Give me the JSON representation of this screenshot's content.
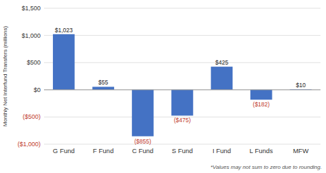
{
  "chart_data": {
    "type": "bar",
    "ylabel": "Monthly Net Interfund Transfers (millions)",
    "categories": [
      "G Fund",
      "F Fund",
      "C Fund",
      "S Fund",
      "I Fund",
      "L Funds",
      "MFW"
    ],
    "values": [
      1023,
      55,
      -855,
      -475,
      425,
      -182,
      10
    ],
    "value_labels": [
      "$1,023",
      "$55",
      "($855)",
      "($475)",
      "$425",
      "($182)",
      "$10"
    ],
    "data_labels": true,
    "color": "#4472C4",
    "ylim": [
      -1000,
      1500
    ],
    "yticks": [
      {
        "value": -1000,
        "label": "($1,000)"
      },
      {
        "value": -500,
        "label": "($500)"
      },
      {
        "value": 0,
        "label": "$0"
      },
      {
        "value": 500,
        "label": "$500"
      },
      {
        "value": 1000,
        "label": "$1,000"
      },
      {
        "value": 1500,
        "label": "$1,500"
      }
    ],
    "grid": true,
    "annotations": [
      "*Values may not sum to zero due to rounding."
    ]
  }
}
